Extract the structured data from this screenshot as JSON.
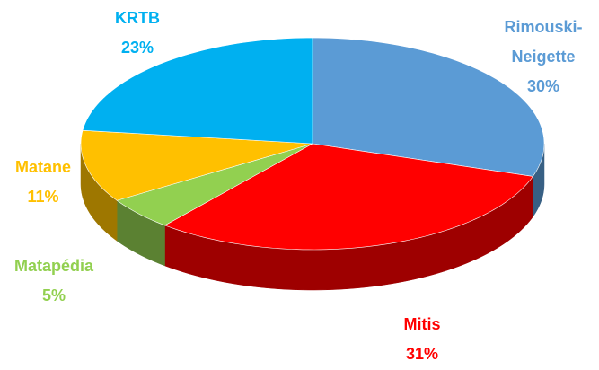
{
  "chart_data": {
    "type": "pie",
    "categories": [
      "Rimouski-Neigette",
      "Mitis",
      "Matapédia",
      "Matane",
      "KRTB"
    ],
    "values": [
      30,
      31,
      5,
      11,
      23
    ],
    "value_labels": [
      "30%",
      "31%",
      "5%",
      "11%",
      "23%"
    ],
    "colors": [
      "#5b9bd5",
      "#ff0000",
      "#92d050",
      "#ffc000",
      "#00b0f0"
    ]
  }
}
